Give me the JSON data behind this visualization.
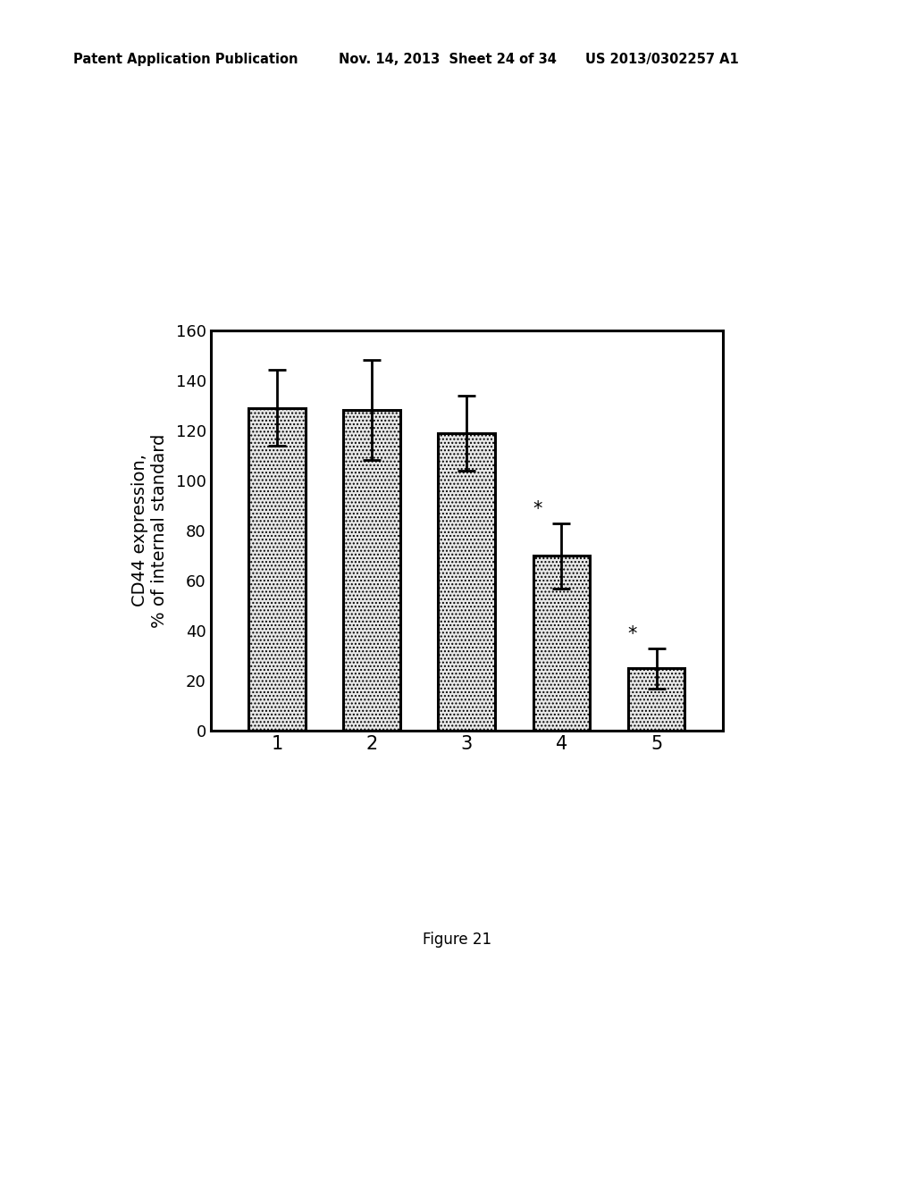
{
  "categories": [
    "1",
    "2",
    "3",
    "4",
    "5"
  ],
  "values": [
    129,
    128,
    119,
    70,
    25
  ],
  "errors": [
    15,
    20,
    15,
    13,
    8
  ],
  "bar_color": "#e8e8e8",
  "bar_edge_color": "#000000",
  "bar_width": 0.6,
  "ylabel": "CD44 expression,\n% of internal standard",
  "ylim": [
    0,
    160
  ],
  "yticks": [
    0,
    20,
    40,
    60,
    80,
    100,
    120,
    140,
    160
  ],
  "xtick_labels": [
    "1",
    "2",
    "3",
    "4",
    "5"
  ],
  "sig_bar_indices": [
    3,
    4
  ],
  "significance_label": "*",
  "figure_label": "Figure 21",
  "header_left": "Patent Application Publication",
  "header_mid": "Nov. 14, 2013  Sheet 24 of 34",
  "header_right": "US 2013/0302257 A1",
  "background_color": "#ffffff"
}
